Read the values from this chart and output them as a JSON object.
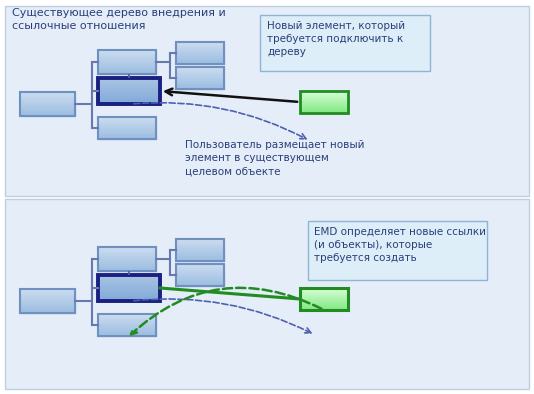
{
  "text_color": "#2a3f7a",
  "title_top": "Существующее дерево внедрения и\nссылочные отношения",
  "label_new_element": "Новый элемент, который\nтребуется подключить к\nдереву",
  "label_user_places": "Пользователь размещает новый\nэлемент в существующем\nцелевом объекте",
  "label_emd": "EMD определяет новые ссылки\n(и объекты), которые\nтребуется создать",
  "green_edge": "#228B22",
  "box_edge_dark": "#1a2080",
  "line_color": "#6878b0",
  "dashed_blue": "#5060b0",
  "dashed_green": "#228B22"
}
